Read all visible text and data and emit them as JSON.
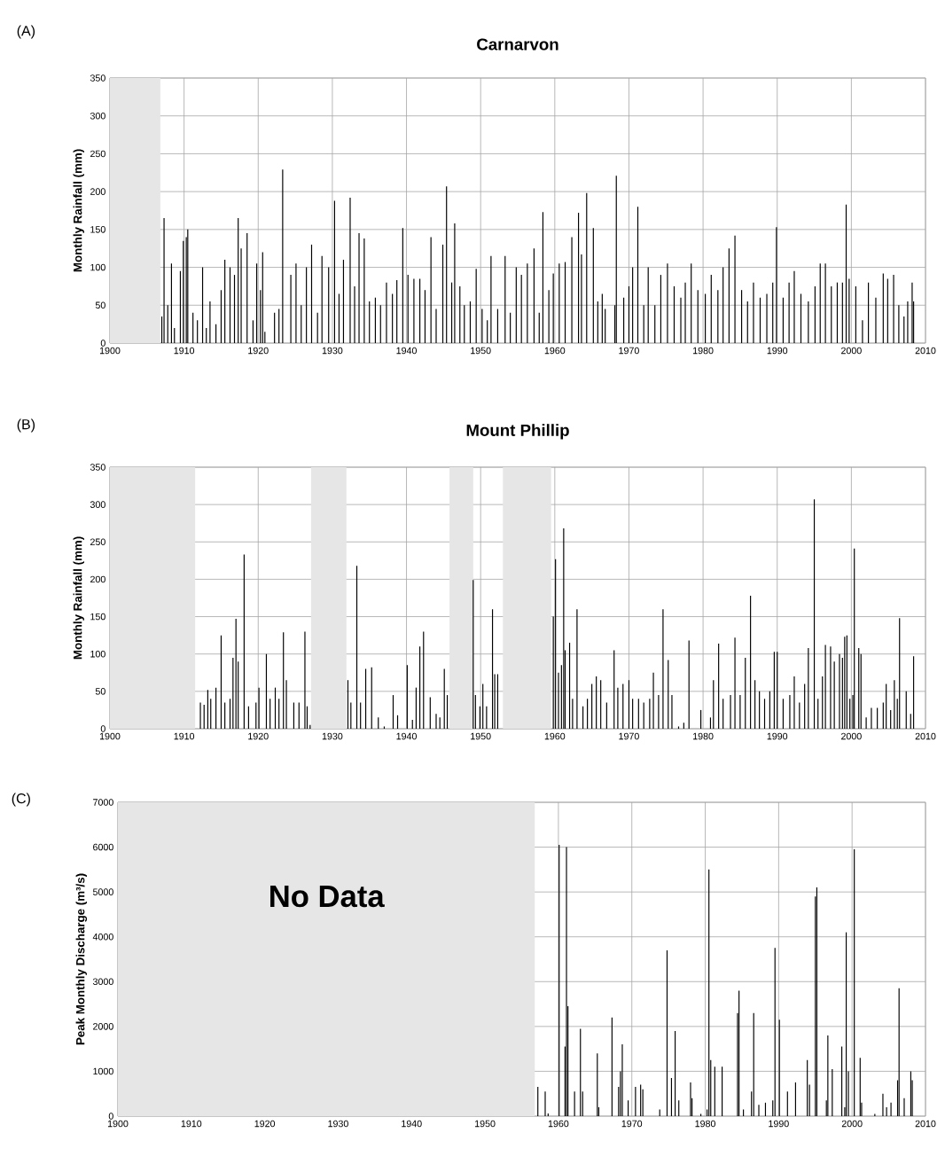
{
  "chart_data": [
    {
      "type": "bar",
      "title": "Carnarvon",
      "ylabel": "Monthly Rainfall (mm)",
      "annotations": [
        "(A)"
      ],
      "color": "#000000",
      "grid": true,
      "xlim": [
        1900,
        2010
      ],
      "xticks": [
        1900,
        1910,
        1920,
        1930,
        1940,
        1950,
        1960,
        1970,
        1980,
        1990,
        2000,
        2010
      ],
      "ylim": [
        0,
        350
      ],
      "yticks": [
        0,
        50,
        100,
        150,
        200,
        250,
        300,
        350
      ],
      "bands": [
        {
          "axis": "x",
          "from": 1900,
          "to": 1906.8,
          "color": "#e6e6e6"
        }
      ],
      "x": [
        1907.0,
        1907.3,
        1907.8,
        1908.3,
        1908.7,
        1909.5,
        1909.9,
        1910.3,
        1910.5,
        1911.2,
        1911.8,
        1912.5,
        1913.0,
        1913.5,
        1914.3,
        1915.0,
        1915.5,
        1916.2,
        1916.8,
        1917.3,
        1917.7,
        1918.5,
        1919.3,
        1919.8,
        1920.3,
        1920.6,
        1920.9,
        1922.2,
        1922.8,
        1923.3,
        1924.4,
        1925.1,
        1925.8,
        1926.5,
        1927.2,
        1928.0,
        1928.6,
        1929.5,
        1930.3,
        1930.9,
        1931.5,
        1932.4,
        1933.0,
        1933.6,
        1934.3,
        1935.0,
        1935.8,
        1936.5,
        1937.3,
        1938.1,
        1938.7,
        1939.5,
        1940.2,
        1941.0,
        1941.8,
        1942.5,
        1943.3,
        1944.0,
        1944.9,
        1945.4,
        1946.1,
        1946.5,
        1947.2,
        1947.8,
        1948.6,
        1949.4,
        1950.2,
        1950.9,
        1951.4,
        1952.3,
        1953.3,
        1954.0,
        1954.8,
        1955.5,
        1956.3,
        1957.2,
        1957.9,
        1958.4,
        1959.2,
        1959.8,
        1960.6,
        1961.4,
        1962.3,
        1963.2,
        1963.6,
        1964.3,
        1965.2,
        1965.8,
        1966.4,
        1966.8,
        1968.1,
        1968.3,
        1969.3,
        1970.0,
        1970.5,
        1971.2,
        1972.0,
        1972.6,
        1973.5,
        1974.3,
        1975.2,
        1976.1,
        1977.0,
        1977.6,
        1978.4,
        1979.3,
        1980.3,
        1981.1,
        1982.0,
        1982.7,
        1983.5,
        1984.3,
        1985.2,
        1986.0,
        1986.8,
        1987.7,
        1988.6,
        1989.4,
        1989.9,
        1990.8,
        1991.6,
        1992.3,
        1993.2,
        1994.2,
        1995.1,
        1995.8,
        1996.5,
        1997.3,
        1998.1,
        1998.8,
        1999.3,
        1999.7,
        2000.6,
        2001.5,
        2002.3,
        2003.3,
        2004.3,
        2004.9,
        2005.7,
        2006.4,
        2007.1,
        2007.6,
        2008.2,
        2008.4
      ],
      "values": [
        35,
        165,
        50,
        105,
        20,
        95,
        135,
        140,
        150,
        40,
        30,
        100,
        20,
        55,
        25,
        70,
        110,
        100,
        90,
        165,
        125,
        145,
        30,
        105,
        70,
        120,
        15,
        40,
        45,
        229,
        90,
        105,
        50,
        100,
        130,
        40,
        115,
        100,
        188,
        65,
        110,
        192,
        75,
        145,
        138,
        55,
        60,
        50,
        80,
        65,
        83,
        152,
        90,
        85,
        85,
        70,
        140,
        45,
        130,
        207,
        80,
        158,
        75,
        50,
        55,
        98,
        45,
        30,
        115,
        45,
        115,
        40,
        100,
        90,
        105,
        125,
        40,
        173,
        70,
        92,
        105,
        107,
        140,
        172,
        117,
        198,
        152,
        55,
        65,
        45,
        50,
        221,
        60,
        75,
        100,
        180,
        50,
        100,
        50,
        90,
        105,
        75,
        60,
        80,
        105,
        70,
        65,
        90,
        70,
        100,
        125,
        142,
        70,
        55,
        80,
        60,
        65,
        80,
        153,
        60,
        80,
        95,
        65,
        55,
        75,
        105,
        105,
        75,
        80,
        80,
        183,
        85,
        75,
        30,
        80,
        60,
        92,
        85,
        90,
        50,
        35,
        55,
        80,
        55
      ]
    },
    {
      "type": "bar",
      "title": "Mount Phillip",
      "ylabel": "Monthly Rainfall (mm)",
      "annotations": [
        "(B)"
      ],
      "color": "#000000",
      "grid": true,
      "xlim": [
        1900,
        2010
      ],
      "xticks": [
        1900,
        1910,
        1920,
        1930,
        1940,
        1950,
        1960,
        1970,
        1980,
        1990,
        2000,
        2010
      ],
      "ylim": [
        0,
        350
      ],
      "yticks": [
        0,
        50,
        100,
        150,
        200,
        250,
        300,
        350
      ],
      "bands": [
        {
          "axis": "x",
          "from": 1900,
          "to": 1911.5,
          "color": "#e6e6e6"
        },
        {
          "axis": "x",
          "from": 1927.1,
          "to": 1931.9,
          "color": "#e6e6e6"
        },
        {
          "axis": "x",
          "from": 1945.8,
          "to": 1949.0,
          "color": "#e6e6e6"
        },
        {
          "axis": "x",
          "from": 1953.0,
          "to": 1959.5,
          "color": "#e6e6e6"
        }
      ],
      "x": [
        1912.2,
        1912.7,
        1913.2,
        1913.6,
        1914.3,
        1915.0,
        1915.5,
        1916.2,
        1916.6,
        1917.0,
        1917.3,
        1918.1,
        1918.7,
        1919.7,
        1920.1,
        1921.1,
        1921.6,
        1922.3,
        1922.8,
        1923.4,
        1923.8,
        1924.8,
        1925.5,
        1926.3,
        1926.6,
        1927.0,
        1932.1,
        1932.5,
        1933.3,
        1933.8,
        1934.5,
        1935.3,
        1936.2,
        1937.0,
        1938.2,
        1938.8,
        1940.1,
        1940.8,
        1941.3,
        1941.8,
        1942.3,
        1943.2,
        1944.0,
        1944.5,
        1945.1,
        1945.5,
        1949.0,
        1949.3,
        1949.9,
        1950.3,
        1950.8,
        1951.6,
        1951.9,
        1952.3,
        1959.8,
        1960.1,
        1960.5,
        1960.9,
        1961.2,
        1961.4,
        1962.0,
        1962.4,
        1963.0,
        1963.8,
        1964.4,
        1965.0,
        1965.6,
        1966.2,
        1967.0,
        1968.0,
        1968.5,
        1969.2,
        1970.0,
        1970.5,
        1971.3,
        1972.0,
        1972.8,
        1973.3,
        1974.0,
        1974.6,
        1975.3,
        1975.8,
        1976.7,
        1977.4,
        1978.1,
        1979.7,
        1981.0,
        1981.4,
        1982.1,
        1982.7,
        1983.7,
        1984.3,
        1985.0,
        1985.7,
        1986.4,
        1987.0,
        1987.6,
        1988.3,
        1989.0,
        1989.6,
        1990.0,
        1990.8,
        1991.7,
        1992.3,
        1993.0,
        1993.7,
        1994.2,
        1995.0,
        1995.5,
        1996.1,
        1996.5,
        1997.2,
        1997.7,
        1998.4,
        1998.8,
        1999.1,
        1999.4,
        1999.8,
        2000.2,
        2000.4,
        2001.0,
        2001.3,
        2002.0,
        2002.7,
        2003.5,
        2004.3,
        2004.7,
        2005.3,
        2005.8,
        2006.2,
        2006.5,
        2007.4,
        2008.0,
        2008.4
      ],
      "values": [
        35,
        32,
        52,
        40,
        55,
        125,
        35,
        40,
        95,
        147,
        90,
        233,
        30,
        35,
        55,
        100,
        40,
        55,
        40,
        129,
        65,
        35,
        35,
        130,
        30,
        5,
        65,
        35,
        218,
        35,
        80,
        82,
        15,
        3,
        45,
        18,
        85,
        12,
        55,
        110,
        130,
        42,
        20,
        15,
        80,
        45,
        199,
        45,
        30,
        60,
        30,
        160,
        73,
        73,
        150,
        227,
        75,
        85,
        268,
        105,
        115,
        40,
        160,
        30,
        40,
        60,
        70,
        65,
        35,
        105,
        55,
        60,
        65,
        40,
        40,
        35,
        40,
        75,
        45,
        160,
        92,
        45,
        3,
        8,
        118,
        25,
        15,
        65,
        114,
        40,
        45,
        122,
        45,
        95,
        178,
        65,
        50,
        40,
        50,
        103,
        103,
        40,
        45,
        70,
        35,
        60,
        108,
        307,
        40,
        70,
        112,
        110,
        90,
        100,
        95,
        123,
        125,
        40,
        45,
        241,
        108,
        100,
        15,
        28,
        28,
        35,
        60,
        25,
        65,
        40,
        148,
        50,
        20,
        97
      ]
    },
    {
      "type": "bar",
      "ylabel": "Peak Monthly Discharge (m³/s)",
      "annotations": [
        "(C)"
      ],
      "color": "#000000",
      "grid": true,
      "xlim": [
        1900,
        2010
      ],
      "xticks": [
        1900,
        1910,
        1920,
        1930,
        1940,
        1950,
        1960,
        1970,
        1980,
        1990,
        2000,
        2010
      ],
      "ylim": [
        0,
        7000
      ],
      "yticks": [
        0,
        1000,
        2000,
        3000,
        4000,
        5000,
        6000,
        7000
      ],
      "bands": [
        {
          "axis": "x",
          "from": 1900,
          "to": 1956.8,
          "color": "#e6e6e6",
          "label": "No Data"
        }
      ],
      "x": [
        1957.2,
        1958.2,
        1958.6,
        1960.1,
        1960.9,
        1961.1,
        1961.3,
        1962.2,
        1963.0,
        1963.3,
        1965.3,
        1965.5,
        1967.3,
        1968.2,
        1968.45,
        1968.7,
        1969.5,
        1970.5,
        1971.2,
        1971.5,
        1973.8,
        1974.8,
        1975.4,
        1975.9,
        1976.4,
        1978.0,
        1978.2,
        1979.4,
        1980.25,
        1980.5,
        1980.75,
        1981.3,
        1982.3,
        1984.4,
        1984.6,
        1985.2,
        1986.3,
        1986.6,
        1987.3,
        1988.2,
        1989.2,
        1989.5,
        1990.1,
        1991.2,
        1992.3,
        1993.9,
        1994.2,
        1995.0,
        1995.2,
        1996.5,
        1996.7,
        1997.3,
        1998.6,
        1999.0,
        1999.2,
        1999.5,
        2000.3,
        2001.1,
        2001.3,
        2003.1,
        2004.2,
        2004.7,
        2005.3,
        2006.2,
        2006.4,
        2007.1,
        2008.0,
        2008.2
      ],
      "values": [
        650,
        550,
        60,
        6050,
        1550,
        6000,
        2450,
        550,
        1950,
        550,
        1400,
        200,
        2200,
        650,
        1000,
        1600,
        350,
        650,
        700,
        600,
        150,
        3700,
        850,
        1900,
        350,
        750,
        400,
        50,
        150,
        5500,
        1250,
        1100,
        1100,
        2300,
        2800,
        150,
        550,
        2300,
        250,
        300,
        350,
        3750,
        2150,
        550,
        750,
        1250,
        700,
        4900,
        5100,
        350,
        1800,
        1050,
        1550,
        200,
        4100,
        1000,
        5950,
        1300,
        300,
        50,
        500,
        200,
        300,
        800,
        2850,
        400,
        1000,
        800
      ]
    }
  ]
}
